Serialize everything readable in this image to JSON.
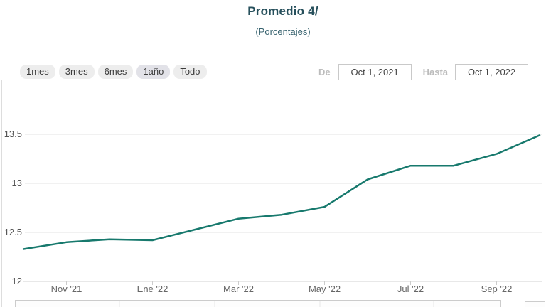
{
  "header": {
    "title": "Promedio 4/",
    "subtitle": "(Porcentajes)"
  },
  "range_buttons": [
    {
      "label": "1mes",
      "selected": false
    },
    {
      "label": "3mes",
      "selected": false
    },
    {
      "label": "6mes",
      "selected": false
    },
    {
      "label": "1año",
      "selected": true
    },
    {
      "label": "Todo",
      "selected": false
    }
  ],
  "date_range": {
    "from_label": "De",
    "from_value": "Oct 1, 2021",
    "to_label": "Hasta",
    "to_value": "Oct 1, 2022"
  },
  "colors": {
    "title_text": "#27505c",
    "series_line": "#17796d",
    "gridline": "#e3e3e3"
  },
  "chart_data": {
    "type": "line",
    "title": "Promedio 4/",
    "subtitle": "(Porcentajes)",
    "x": [
      "Oct 2021",
      "Nov 2021",
      "Dic 2021",
      "Ene 2022",
      "Feb 2022",
      "Mar 2022",
      "Abr 2022",
      "May 2022",
      "Jun 2022",
      "Jul 2022",
      "Ago 2022",
      "Sep 2022",
      "Oct 2022"
    ],
    "values": [
      12.33,
      12.4,
      12.43,
      12.42,
      12.53,
      12.64,
      12.68,
      12.76,
      13.04,
      13.18,
      13.18,
      13.3,
      13.49
    ],
    "series_name": "Promedio",
    "xtick_labels": [
      "Nov '21",
      "Ene '22",
      "Mar '22",
      "May '22",
      "Jul '22",
      "Sep '22"
    ],
    "xtick_indices": [
      1,
      3,
      5,
      7,
      9,
      11
    ],
    "ytick_labels": [
      "12",
      "12.5",
      "13",
      "13.5"
    ],
    "yticks": [
      12,
      12.5,
      13,
      13.5
    ],
    "ylim": [
      12,
      13.55
    ],
    "xlabel": "",
    "ylabel": "",
    "grid": true,
    "legend": "none",
    "line_color": "#17796d"
  }
}
